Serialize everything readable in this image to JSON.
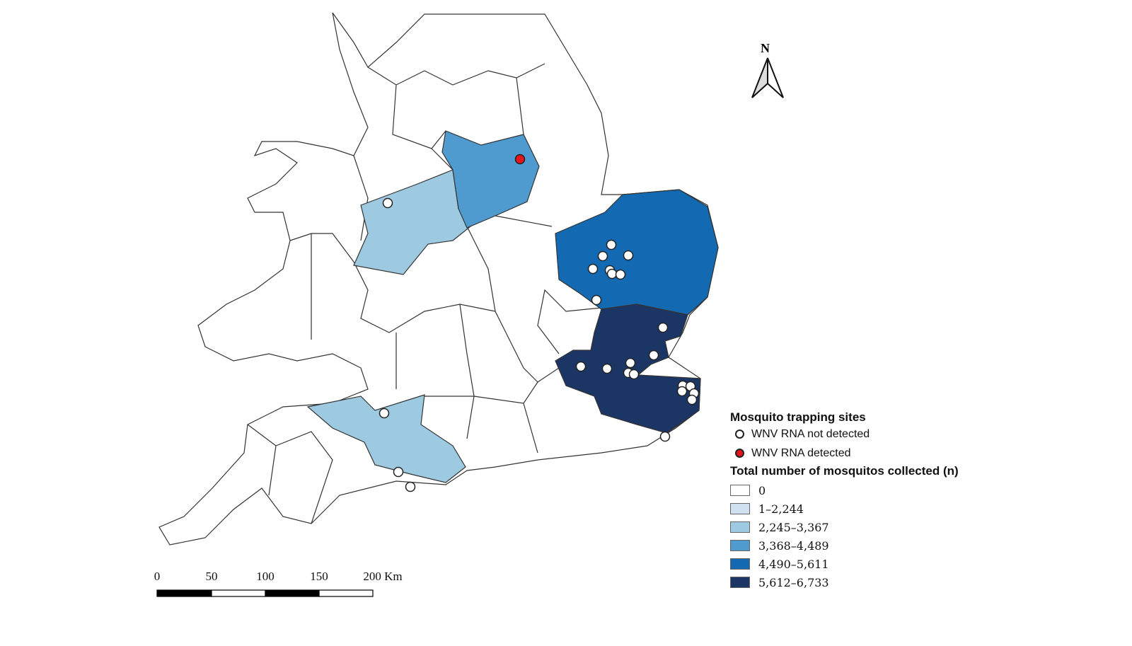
{
  "north_label": "N",
  "scale_bar": {
    "labels": [
      "0",
      "50",
      "100",
      "150",
      "200 Km"
    ]
  },
  "legend": {
    "sites_title": "Mosquito trapping sites",
    "sites": [
      {
        "label": "WNV RNA not detected",
        "color": "#ffffff"
      },
      {
        "label": "WNV RNA detected",
        "color": "#e3141b"
      }
    ],
    "count_title": "Total number of mosquitos collected (n)",
    "classes": [
      {
        "label": "0",
        "color": "#ffffff"
      },
      {
        "label": "1–2,244",
        "color": "#d0e2f1"
      },
      {
        "label": "2,245–3,367",
        "color": "#9ecae1"
      },
      {
        "label": "3,368–4,489",
        "color": "#4f9bcf"
      },
      {
        "label": "4,490–5,611",
        "color": "#136ab3"
      },
      {
        "label": "5,612–6,733",
        "color": "#1b3564"
      }
    ]
  }
}
